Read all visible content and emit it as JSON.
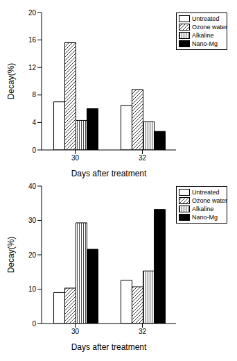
{
  "chart_data": [
    {
      "type": "bar",
      "x_label": "Days after treatment",
      "y_label": "Decay(%)",
      "categories": [
        "30",
        "32"
      ],
      "series": [
        {
          "name": "Untreated",
          "color": "#ffffff",
          "values": [
            7.0,
            6.5
          ]
        },
        {
          "name": "Ozone water",
          "color": "#000000",
          "values": [
            15.6,
            8.8
          ]
        },
        {
          "name": "Alkaline",
          "color": "#000000",
          "values": [
            4.3,
            4.1
          ]
        },
        {
          "name": "Nano-Mg",
          "color": "#000000",
          "values": [
            6.0,
            2.7
          ]
        }
      ],
      "ylim": [
        0,
        20
      ],
      "yticks": [
        0,
        4,
        8,
        12,
        16,
        20
      ],
      "legend": "upper right"
    },
    {
      "type": "bar",
      "x_label": "Days after treatment",
      "y_label": "Decay(%)",
      "categories": [
        "30",
        "32"
      ],
      "series": [
        {
          "name": "Untreated",
          "color": "#ffffff",
          "values": [
            9.0,
            12.6
          ]
        },
        {
          "name": "Ozone water",
          "color": "#000000",
          "values": [
            10.3,
            10.7
          ]
        },
        {
          "name": "Alkaline",
          "color": "#000000",
          "values": [
            29.3,
            15.3
          ]
        },
        {
          "name": "Nano-Mg",
          "color": "#000000",
          "values": [
            21.6,
            33.2
          ]
        }
      ],
      "ylim": [
        0,
        40
      ],
      "yticks": [
        0,
        10,
        20,
        30,
        40
      ],
      "legend": "upper right"
    }
  ]
}
